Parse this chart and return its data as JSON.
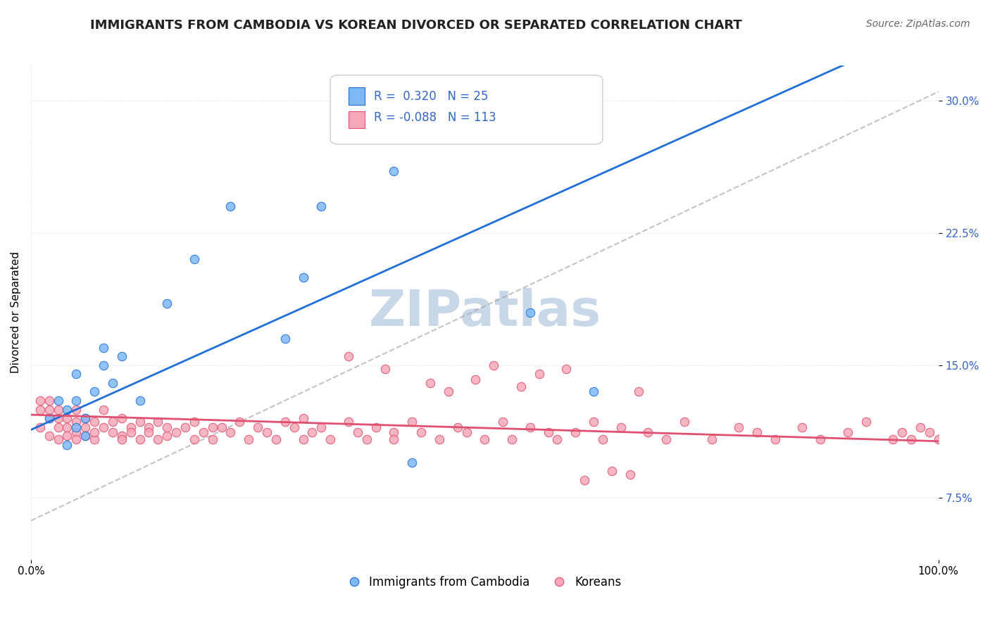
{
  "title": "IMMIGRANTS FROM CAMBODIA VS KOREAN DIVORCED OR SEPARATED CORRELATION CHART",
  "source_text": "Source: ZipAtlas.com",
  "xlabel": "",
  "ylabel": "Divorced or Separated",
  "xmin": 0.0,
  "xmax": 1.0,
  "ymin": 0.04,
  "ymax": 0.32,
  "yticks": [
    0.075,
    0.15,
    0.225,
    0.3
  ],
  "ytick_labels": [
    "7.5%",
    "15.0%",
    "22.5%",
    "30.0%"
  ],
  "xticks": [
    0.0,
    1.0
  ],
  "xtick_labels": [
    "0.0%",
    "100.0%"
  ],
  "r_blue": 0.32,
  "n_blue": 25,
  "r_pink": -0.088,
  "n_pink": 113,
  "blue_color": "#7EB8F7",
  "pink_color": "#F7A8B8",
  "blue_line_color": "#1E6FD9",
  "pink_line_color": "#E05070",
  "dashed_line_color": "#AAAAAA",
  "watermark_text": "ZIPatlas",
  "watermark_color": "#C8D8E8",
  "legend_label_blue": "Immigrants from Cambodia",
  "legend_label_pink": "Koreans",
  "blue_scatter_x": [
    0.02,
    0.03,
    0.04,
    0.04,
    0.05,
    0.05,
    0.05,
    0.06,
    0.06,
    0.07,
    0.08,
    0.08,
    0.09,
    0.1,
    0.12,
    0.15,
    0.18,
    0.22,
    0.28,
    0.3,
    0.32,
    0.4,
    0.42,
    0.55,
    0.62
  ],
  "blue_scatter_y": [
    0.12,
    0.13,
    0.105,
    0.125,
    0.115,
    0.13,
    0.145,
    0.12,
    0.11,
    0.135,
    0.15,
    0.16,
    0.14,
    0.155,
    0.13,
    0.185,
    0.21,
    0.24,
    0.165,
    0.2,
    0.24,
    0.26,
    0.095,
    0.18,
    0.135
  ],
  "pink_scatter_x": [
    0.01,
    0.01,
    0.01,
    0.02,
    0.02,
    0.02,
    0.02,
    0.03,
    0.03,
    0.03,
    0.03,
    0.04,
    0.04,
    0.04,
    0.05,
    0.05,
    0.05,
    0.05,
    0.06,
    0.06,
    0.06,
    0.07,
    0.07,
    0.07,
    0.08,
    0.08,
    0.09,
    0.09,
    0.1,
    0.1,
    0.1,
    0.11,
    0.11,
    0.12,
    0.12,
    0.13,
    0.13,
    0.14,
    0.14,
    0.15,
    0.15,
    0.16,
    0.17,
    0.18,
    0.18,
    0.19,
    0.2,
    0.2,
    0.21,
    0.22,
    0.23,
    0.24,
    0.25,
    0.26,
    0.27,
    0.28,
    0.29,
    0.3,
    0.3,
    0.31,
    0.32,
    0.33,
    0.35,
    0.36,
    0.37,
    0.38,
    0.4,
    0.4,
    0.42,
    0.43,
    0.45,
    0.47,
    0.48,
    0.5,
    0.52,
    0.53,
    0.55,
    0.57,
    0.58,
    0.6,
    0.62,
    0.63,
    0.65,
    0.68,
    0.7,
    0.72,
    0.75,
    0.78,
    0.8,
    0.82,
    0.85,
    0.87,
    0.9,
    0.92,
    0.95,
    0.96,
    0.97,
    0.98,
    0.99,
    1.0,
    0.35,
    0.39,
    0.44,
    0.46,
    0.49,
    0.51,
    0.54,
    0.56,
    0.59,
    0.61,
    0.64,
    0.66,
    0.67
  ],
  "pink_scatter_y": [
    0.125,
    0.13,
    0.115,
    0.12,
    0.13,
    0.11,
    0.125,
    0.12,
    0.115,
    0.125,
    0.108,
    0.115,
    0.12,
    0.11,
    0.118,
    0.112,
    0.125,
    0.108,
    0.115,
    0.12,
    0.11,
    0.108,
    0.118,
    0.112,
    0.115,
    0.125,
    0.112,
    0.118,
    0.12,
    0.11,
    0.108,
    0.115,
    0.112,
    0.118,
    0.108,
    0.115,
    0.112,
    0.108,
    0.118,
    0.11,
    0.115,
    0.112,
    0.115,
    0.108,
    0.118,
    0.112,
    0.115,
    0.108,
    0.115,
    0.112,
    0.118,
    0.108,
    0.115,
    0.112,
    0.108,
    0.118,
    0.115,
    0.12,
    0.108,
    0.112,
    0.115,
    0.108,
    0.118,
    0.112,
    0.108,
    0.115,
    0.112,
    0.108,
    0.118,
    0.112,
    0.108,
    0.115,
    0.112,
    0.108,
    0.118,
    0.108,
    0.115,
    0.112,
    0.108,
    0.112,
    0.118,
    0.108,
    0.115,
    0.112,
    0.108,
    0.118,
    0.108,
    0.115,
    0.112,
    0.108,
    0.115,
    0.108,
    0.112,
    0.118,
    0.108,
    0.112,
    0.108,
    0.115,
    0.112,
    0.108,
    0.155,
    0.148,
    0.14,
    0.135,
    0.142,
    0.15,
    0.138,
    0.145,
    0.148,
    0.085,
    0.09,
    0.088,
    0.135
  ],
  "title_fontsize": 13,
  "axis_label_fontsize": 11,
  "tick_fontsize": 11,
  "legend_fontsize": 12,
  "background_color": "#FFFFFF",
  "plot_bg_color": "#FFFFFF"
}
